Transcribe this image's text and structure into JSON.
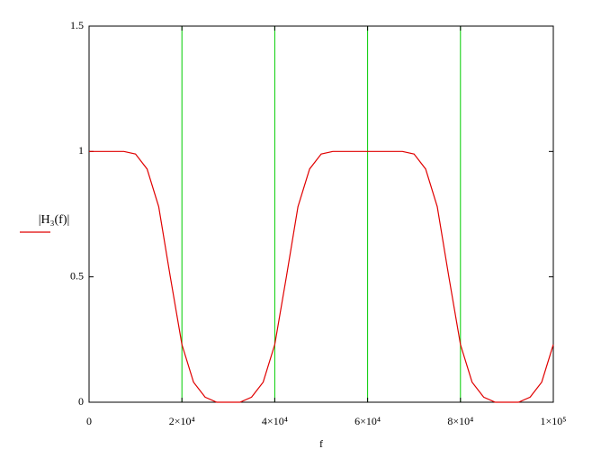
{
  "chart_data": {
    "type": "line",
    "xlabel": "f",
    "ylabel": "|H₃(f)|",
    "x": [
      0,
      2500,
      5000,
      7500,
      10000,
      12500,
      15000,
      17500,
      20000,
      22500,
      25000,
      27500,
      30000,
      32500,
      35000,
      37500,
      40000,
      42500,
      45000,
      47500,
      50000,
      52500,
      55000,
      57500,
      60000,
      62500,
      65000,
      67500,
      70000,
      72500,
      75000,
      77500,
      80000,
      82500,
      85000,
      87500,
      90000,
      92500,
      95000,
      97500,
      100000
    ],
    "series": [
      {
        "name": "|H₃(f)|",
        "color": "#e00000",
        "values": [
          1,
          1,
          1,
          1,
          0.99,
          0.93,
          0.78,
          0.5,
          0.23,
          0.08,
          0.02,
          0,
          0,
          0,
          0.02,
          0.08,
          0.23,
          0.5,
          0.78,
          0.93,
          0.99,
          1,
          1,
          1,
          1,
          1,
          1,
          1,
          0.99,
          0.93,
          0.78,
          0.5,
          0.23,
          0.08,
          0.02,
          0,
          0,
          0,
          0.02,
          0.08,
          0.23
        ]
      }
    ],
    "vertical_lines": [
      20000,
      40000,
      60000,
      80000
    ],
    "vertical_line_color": "#00cc00",
    "xlim": [
      0,
      100000
    ],
    "ylim": [
      0,
      1.5
    ],
    "xticks": [
      0,
      {
        "value": 20000,
        "label": "2×10⁴"
      },
      {
        "value": 40000,
        "label": "4×10⁴"
      },
      {
        "value": 60000,
        "label": "6×10⁴"
      },
      {
        "value": 80000,
        "label": "8×10⁴"
      },
      {
        "value": 100000,
        "label": "1×10⁵"
      }
    ],
    "yticks": [
      0,
      0.5,
      1,
      1.5
    ]
  }
}
